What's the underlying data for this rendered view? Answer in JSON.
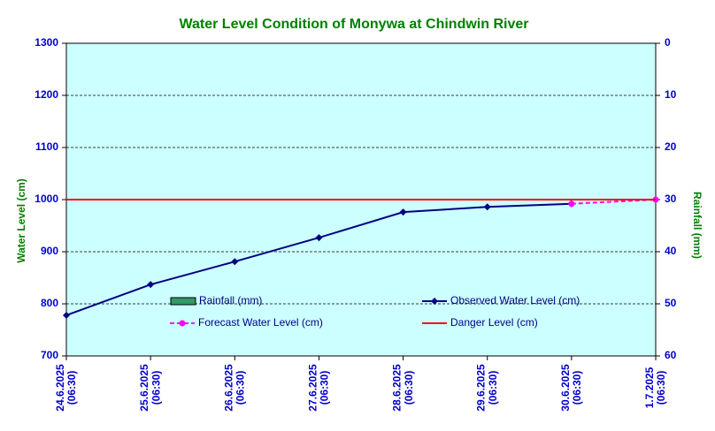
{
  "chart_data": {
    "type": "line",
    "title": "Water Level Condition of Monywa at Chindwin River",
    "y_label": "Water Level (cm)",
    "y2_label": "Rainfall (mm)",
    "categories": [
      [
        "24.6.2025",
        "(06:30)"
      ],
      [
        "25.6.2025",
        "(06:30)"
      ],
      [
        "26.6.2025",
        "(06:30)"
      ],
      [
        "27.6.2025",
        "(06:30)"
      ],
      [
        "28.6.2025",
        "(06:30)"
      ],
      [
        "29.6.2025",
        "(06:30)"
      ],
      [
        "30.6.2025",
        "(06:30)"
      ],
      [
        "1.7.2025",
        "(06:30)"
      ]
    ],
    "series": [
      {
        "name": "Rainfall (mm)",
        "color": "#339966",
        "kind": "bar",
        "axis": "y2",
        "values": [
          null,
          null,
          null,
          null,
          null,
          null,
          null,
          null
        ]
      },
      {
        "name": "Observed Water Level (cm)",
        "color": "#000080",
        "kind": "line",
        "marker": "diamond",
        "values": [
          778,
          837,
          881,
          927,
          976,
          986,
          992,
          null
        ]
      },
      {
        "name": "Forecast Water Level (cm)",
        "color": "#ff00ff",
        "kind": "line",
        "marker": "circle",
        "dashed": true,
        "values": [
          null,
          null,
          null,
          null,
          null,
          null,
          992,
          1000
        ]
      },
      {
        "name": "Danger Level (cm)",
        "color": "#ff0000",
        "kind": "line",
        "values": [
          1000,
          1000,
          1000,
          1000,
          1000,
          1000,
          1000,
          1000
        ]
      }
    ],
    "ylim": [
      700,
      1300
    ],
    "yticks": [
      700,
      800,
      900,
      1000,
      1100,
      1200,
      1300
    ],
    "y2lim": [
      0,
      60
    ],
    "y2ticks": [
      0,
      10,
      20,
      30,
      40,
      50,
      60
    ],
    "y2_reversed": true,
    "grid": true,
    "plot_background": "#ccffff"
  }
}
